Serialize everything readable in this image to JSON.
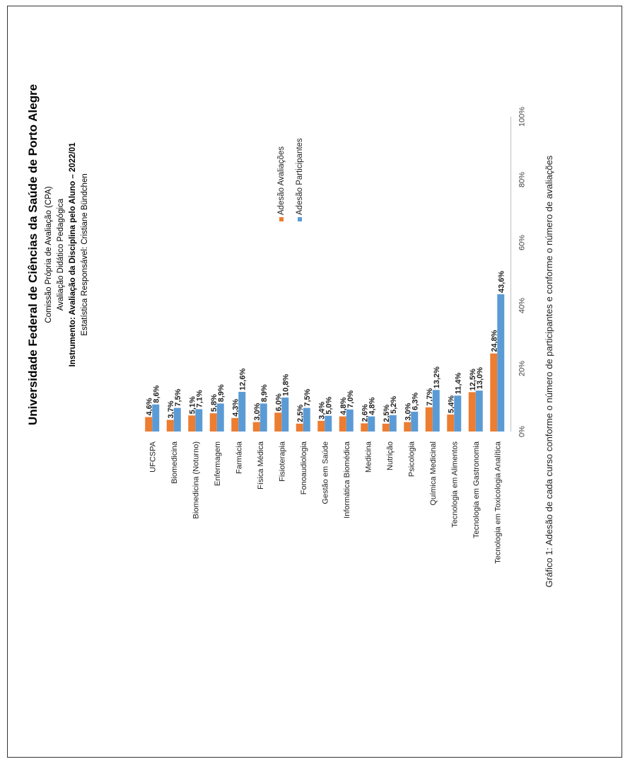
{
  "header": {
    "title": "Universidade Federal de Ciências da Saúde de Porto Alegre",
    "line1": "Comissão Própria de Avaliação (CPA)",
    "line2": "Avaliação Didático Pedagógica",
    "line3": "Instrumento: Avaliação da Disciplina pelo Aluno – 2022/01",
    "line4": "Estatística Responsável: Cristiane Bündchen"
  },
  "caption": "Gráfico 1: Adesão de cada curso conforme o número de participantes e conforme o número de avaliações",
  "colors": {
    "avaliacoes": "#ED7D31",
    "participantes": "#5B9BD5"
  },
  "chart_data": {
    "type": "bar",
    "orientation": "horizontal",
    "categories": [
      "UFCSPA",
      "Biomedicina",
      "Biomedicina (Noturno)",
      "Enfermagem",
      "Farmácia",
      "Física Médica",
      "Fisioterapia",
      "Fonoaudiologia",
      "Gestão em Saúde",
      "Informática Biomédica",
      "Medicina",
      "Nutrição",
      "Psicologia",
      "Química Medicinal",
      "Tecnologia em Alimentos",
      "Tecnologia em Gastronomia",
      "Tecnologia em Toxicologia Analítica"
    ],
    "series": [
      {
        "name": "Adesão Avaliações",
        "values": [
          4.6,
          3.7,
          5.1,
          5.8,
          4.3,
          3.0,
          6.0,
          2.5,
          3.4,
          4.8,
          2.6,
          2.5,
          3.0,
          7.7,
          5.4,
          12.5,
          24.8
        ],
        "labels": [
          "4,6%",
          "3,7%",
          "5,1%",
          "5,8%",
          "4,3%",
          "3,0%",
          "6,0%",
          "2,5%",
          "3,4%",
          "4,8%",
          "2,6%",
          "2,5%",
          "3,0%",
          "7,7%",
          "5,4%",
          "12,5%",
          "24,8%"
        ]
      },
      {
        "name": "Adesão Participantes",
        "values": [
          8.6,
          7.5,
          7.1,
          8.9,
          12.6,
          8.9,
          10.8,
          7.5,
          5.0,
          7.0,
          4.8,
          5.2,
          6.3,
          13.2,
          11.4,
          13.0,
          43.6
        ],
        "labels": [
          "8,6%",
          "7,5%",
          "7,1%",
          "8,9%",
          "12,6%",
          "8,9%",
          "10,8%",
          "7,5%",
          "5,0%",
          "7,0%",
          "4,8%",
          "5,2%",
          "6,3%",
          "13,2%",
          "11,4%",
          "13,0%",
          "43,6%"
        ]
      }
    ],
    "xlim": [
      0,
      100
    ],
    "ticks": [
      "0%",
      "20%",
      "40%",
      "60%",
      "80%",
      "100%"
    ],
    "legend_position": "top-right"
  }
}
